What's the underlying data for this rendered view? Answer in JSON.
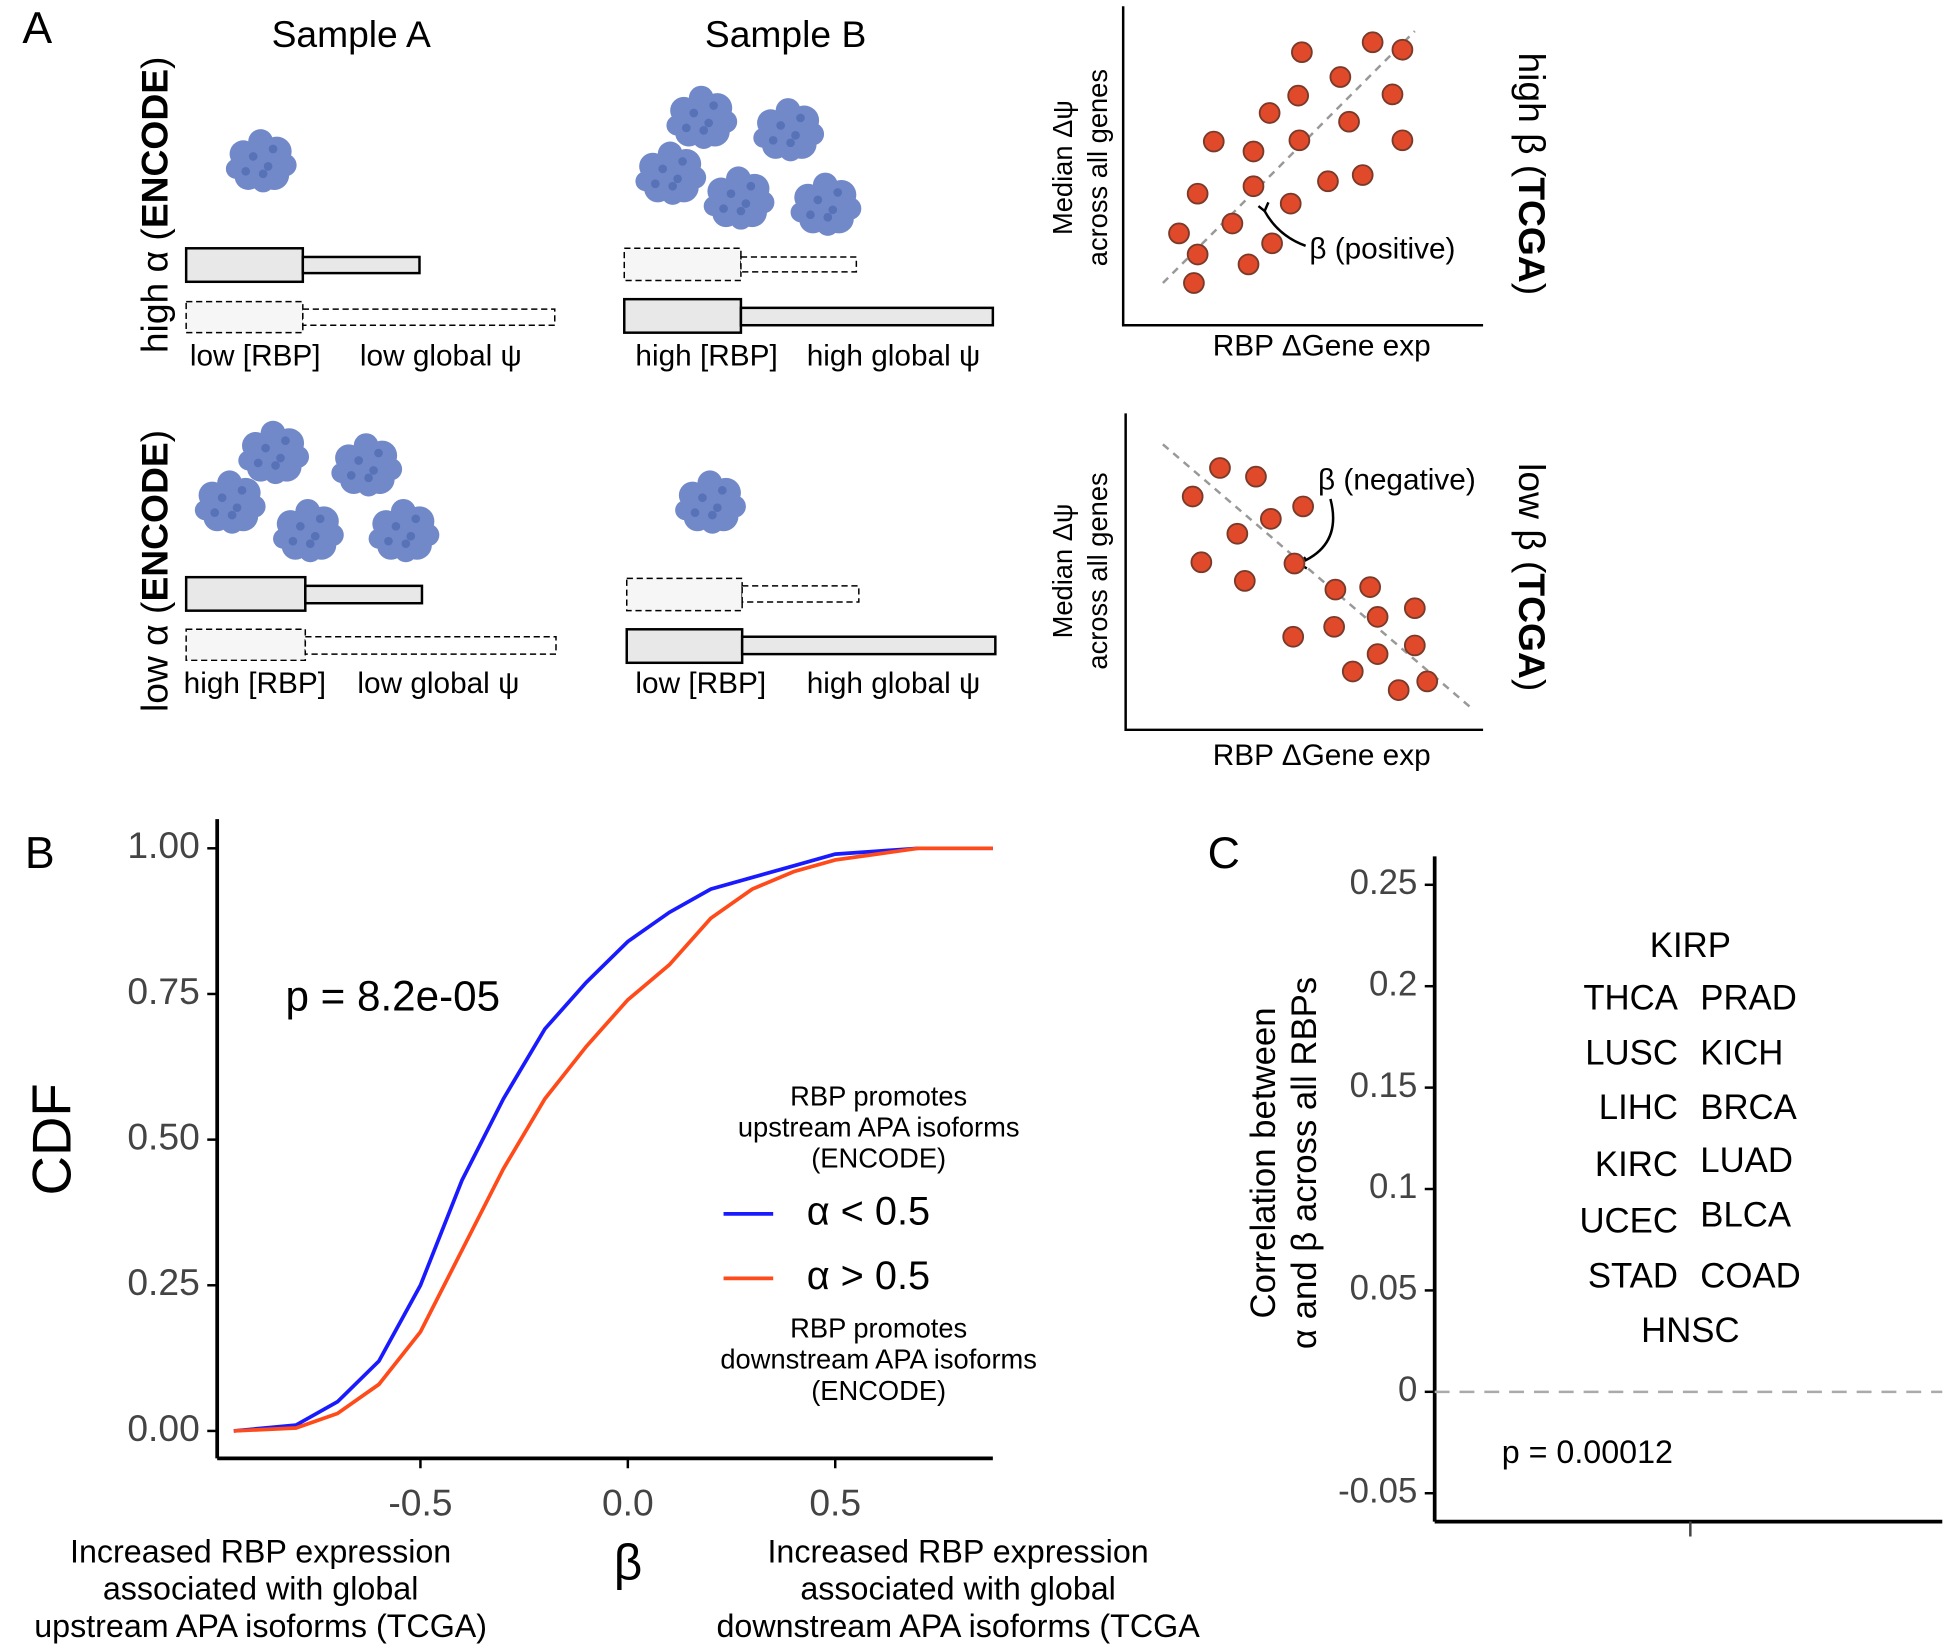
{
  "panel_a": {
    "label": "A",
    "sample_a": "Sample A",
    "sample_b": "Sample B",
    "row_high": [
      "high α (",
      "ENCODE",
      ")"
    ],
    "row_low": [
      "low α (",
      "ENCODE",
      ")"
    ],
    "top_left": [
      "low [RBP]",
      "low global ψ"
    ],
    "top_right": [
      "high [RBP]",
      "high global ψ"
    ],
    "bottom_left": [
      "high [RBP]",
      "low global ψ"
    ],
    "bottom_right": [
      "low [RBP]",
      "high global ψ"
    ],
    "scatter_ylabel": [
      "Median Δψ",
      "across all genes"
    ],
    "scatter_xlabel": "RBP ΔGene exp",
    "positive": "β (positive)",
    "negative": "β (negative)",
    "high_beta": [
      "high β (",
      "TCGA",
      ")"
    ],
    "low_beta": [
      "low β (",
      "TCGA",
      ")"
    ]
  },
  "chart_data": [
    {
      "type": "line",
      "label": "B",
      "ylabel": "CDF",
      "xlabel": "β",
      "annotation": "p = 8.2e-05",
      "left_note": [
        "Increased RBP expression",
        "associated with global",
        "upstream APA isoforms (TCGA)"
      ],
      "right_note": [
        "Increased RBP expression",
        "associated with global",
        "downstream APA isoforms (TCGA"
      ],
      "legend_title": [
        "RBP promotes",
        "upstream APA isoforms",
        "(ENCODE)"
      ],
      "legend_footer": [
        "RBP promotes",
        "downstream APA isoforms",
        "(ENCODE)"
      ],
      "x": [
        -0.95,
        -0.8,
        -0.7,
        -0.6,
        -0.5,
        -0.4,
        -0.3,
        -0.2,
        -0.1,
        0,
        0.1,
        0.2,
        0.3,
        0.4,
        0.5,
        0.6,
        0.7,
        0.88
      ],
      "series": [
        {
          "name": "α < 0.5",
          "color": "#1a1aff",
          "values": [
            0,
            0.01,
            0.05,
            0.12,
            0.25,
            0.43,
            0.57,
            0.69,
            0.77,
            0.84,
            0.89,
            0.93,
            0.95,
            0.97,
            0.99,
            0.995,
            1,
            1
          ]
        },
        {
          "name": "α > 0.5",
          "color": "#ff4a1a",
          "values": [
            0,
            0.005,
            0.03,
            0.08,
            0.17,
            0.31,
            0.45,
            0.57,
            0.66,
            0.74,
            0.8,
            0.88,
            0.93,
            0.96,
            0.98,
            0.99,
            1,
            1
          ]
        }
      ],
      "xlim": [
        -0.99,
        0.88
      ],
      "ylim": [
        -0.047,
        1.05
      ],
      "xticks": [
        -0.5,
        {
          "value": 0,
          "label": "0.0"
        },
        0.5
      ],
      "yticks": [
        {
          "value": 0,
          "label": "0.00"
        },
        {
          "value": 0.25,
          "label": "0.25"
        },
        {
          "value": 0.5,
          "label": "0.50"
        },
        {
          "value": 0.75,
          "label": "0.75"
        },
        {
          "value": 1,
          "label": "1.00"
        }
      ]
    },
    {
      "type": "text_scatter",
      "label": "C",
      "ylabel": [
        "Correlation between",
        "α and β across all RBPs"
      ],
      "annotation": "p = 0.00012",
      "categories": [
        null
      ],
      "labels": [
        "KIRP",
        "THCA",
        "PRAD",
        "LUSC",
        "KICH",
        "LIHC",
        "BRCA",
        "KIRC",
        "LUAD",
        "UCEC",
        "BLCA",
        "STAD",
        "COAD",
        "HNSC"
      ],
      "values": [
        0.219,
        0.193,
        0.193,
        0.166,
        0.166,
        0.139,
        0.139,
        0.111,
        0.113,
        0.083,
        0.086,
        0.056,
        0.056,
        0.029
      ],
      "hline": 0,
      "ylim": [
        -0.064,
        0.264
      ],
      "yticks": [
        -0.05,
        0,
        0.05,
        0.1,
        0.15,
        0.2,
        0.25
      ]
    }
  ]
}
